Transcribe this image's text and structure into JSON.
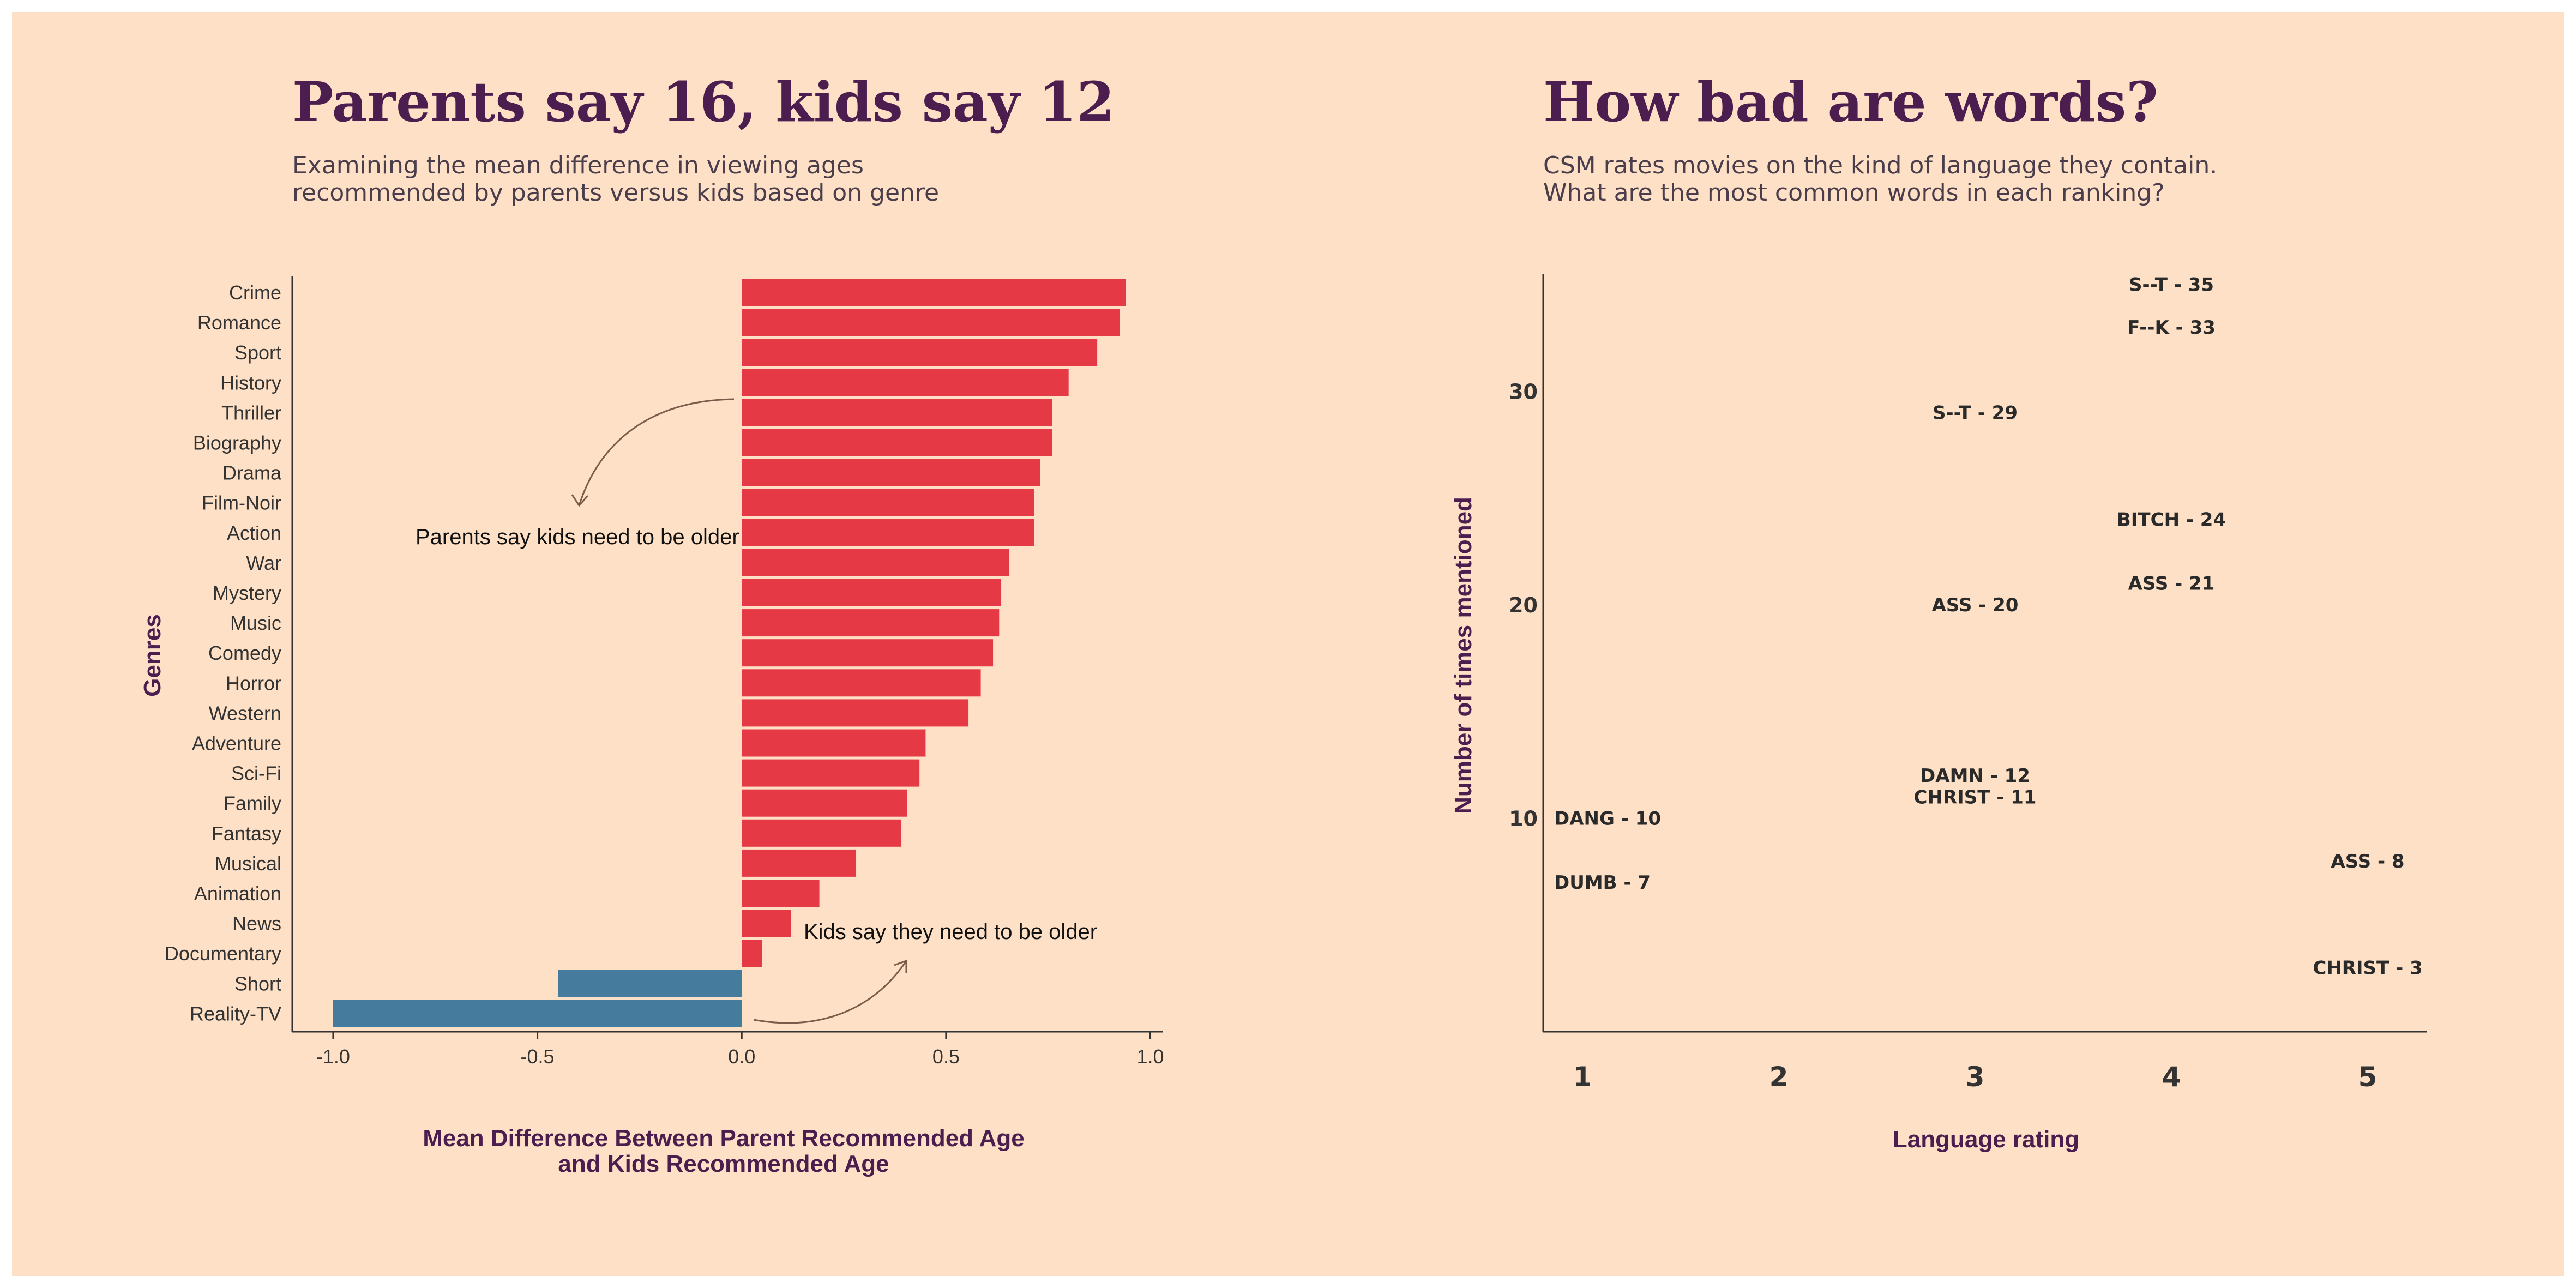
{
  "colors": {
    "background": "#fde0c5",
    "positive_bar": "#e63946",
    "negative_bar": "#457b9d",
    "title": "#4b1e4f",
    "arrow": "#7a5c4a"
  },
  "left_panel": {
    "title": "Parents say 16, kids say 12",
    "subtitle_line1": "Examining the mean difference in viewing ages",
    "subtitle_line2": "recommended by parents versus kids based on genre",
    "annotation_parents": "Parents say kids need to be older",
    "annotation_kids": "Kids say they need to be older"
  },
  "right_panel": {
    "title": "How bad are words?",
    "subtitle_line1": "CSM rates movies on the kind of language they contain.",
    "subtitle_line2": "What are the most common words in each ranking?"
  },
  "chart_data": [
    {
      "type": "bar",
      "orientation": "horizontal",
      "xlabel_line1": "Mean Difference Between Parent Recommended Age",
      "xlabel_line2": "and Kids Recommended Age",
      "ylabel": "Genres",
      "xlim": [
        -1.1,
        1.03
      ],
      "xticks": [
        -1.0,
        -0.5,
        0.0,
        0.5,
        1.0
      ],
      "xtick_labels": [
        "-1.0",
        "-0.5",
        "0.0",
        "0.5",
        "1.0"
      ],
      "categories": [
        "Crime",
        "Romance",
        "Sport",
        "History",
        "Thriller",
        "Biography",
        "Drama",
        "Film-Noir",
        "Action",
        "War",
        "Mystery",
        "Music",
        "Comedy",
        "Horror",
        "Western",
        "Adventure",
        "Sci-Fi",
        "Family",
        "Fantasy",
        "Musical",
        "Animation",
        "News",
        "Documentary",
        "Short",
        "Reality-TV"
      ],
      "values": [
        0.94,
        0.925,
        0.87,
        0.8,
        0.76,
        0.76,
        0.73,
        0.715,
        0.715,
        0.655,
        0.635,
        0.63,
        0.615,
        0.585,
        0.555,
        0.45,
        0.435,
        0.405,
        0.39,
        0.28,
        0.19,
        0.12,
        0.05,
        -0.45,
        -1.0
      ]
    },
    {
      "type": "scatter",
      "xlabel": "Language rating",
      "ylabel": "Number of times mentioned",
      "xlim": [
        0.8,
        5.3
      ],
      "ylim": [
        0,
        35.5
      ],
      "xticks": [
        1,
        2,
        3,
        4,
        5
      ],
      "xtick_labels": [
        "1",
        "2",
        "3",
        "4",
        "5"
      ],
      "yticks": [
        10,
        20,
        30
      ],
      "ytick_labels": [
        "10",
        "20",
        "30"
      ],
      "points": [
        {
          "x": 1,
          "y": 10,
          "label": "DANG - 10"
        },
        {
          "x": 1,
          "y": 7,
          "label": "DUMB - 7"
        },
        {
          "x": 3,
          "y": 29,
          "label": "S--T - 29"
        },
        {
          "x": 3,
          "y": 20,
          "label": "ASS - 20"
        },
        {
          "x": 3,
          "y": 12,
          "label": "DAMN - 12"
        },
        {
          "x": 3,
          "y": 11,
          "label": "CHRIST - 11"
        },
        {
          "x": 4,
          "y": 35,
          "label": "S--T - 35"
        },
        {
          "x": 4,
          "y": 33,
          "label": "F--K - 33"
        },
        {
          "x": 4,
          "y": 24,
          "label": "BITCH - 24"
        },
        {
          "x": 4,
          "y": 21,
          "label": "ASS - 21"
        },
        {
          "x": 5,
          "y": 8,
          "label": "ASS - 8"
        },
        {
          "x": 5,
          "y": 3,
          "label": "CHRIST - 3"
        }
      ]
    }
  ]
}
